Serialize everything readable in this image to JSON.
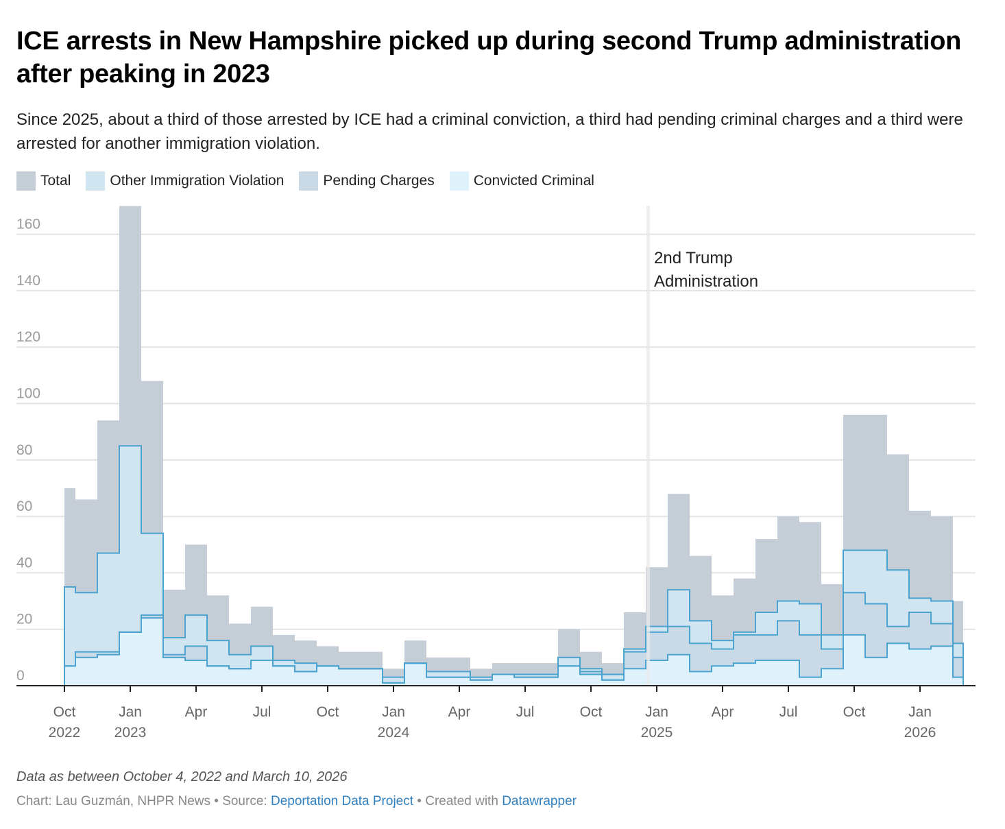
{
  "header": {
    "title": "ICE arrests in New Hampshire picked up during second Trump administration after peaking in 2023",
    "subtitle": "Since 2025, about a third of those arrested by ICE had a criminal conviction, a third had pending criminal charges and a third were arrested for another immigration violation."
  },
  "legend": [
    {
      "label": "Total",
      "color": "#c5cdd7"
    },
    {
      "label": "Other Immigration Violation",
      "color": "#d1e5f1"
    },
    {
      "label": "Pending Charges",
      "color": "#c9d9e6"
    },
    {
      "label": "Convicted Criminal",
      "color": "#dff1fb"
    }
  ],
  "footer": {
    "note": "Data as between October 4, 2022 and March 10, 2026",
    "chart_prefix": "Chart: Lau Guzmán, NHPR News • Source: ",
    "source_link": "Deportation Data Project",
    "created_prefix": " • Created with ",
    "created_link": "Datawrapper"
  },
  "colors": {
    "total": "#c5cdd7",
    "other": "#d1e5f1",
    "pending": "#c9d9e6",
    "convicted": "#dff1fb",
    "line": "#4ba3d0",
    "grid": "#e4e4e4",
    "axis_text": "#9a9a9a",
    "xaxis_text": "#666666"
  },
  "chart_data": {
    "type": "area",
    "subtype": "step",
    "title": "ICE arrests in New Hampshire picked up during second Trump administration after peaking in 2023",
    "xlabel": "",
    "ylabel": "",
    "ylim": [
      0,
      170
    ],
    "grid": true,
    "legend_position": "top-left",
    "y_ticks": [
      0,
      20,
      40,
      60,
      80,
      100,
      120,
      140,
      160
    ],
    "x_ticks": [
      {
        "label": "Oct",
        "sub": "2022",
        "month_index": 0
      },
      {
        "label": "Jan",
        "sub": "2023",
        "month_index": 3
      },
      {
        "label": "Apr",
        "sub": "",
        "month_index": 6
      },
      {
        "label": "Jul",
        "sub": "",
        "month_index": 9
      },
      {
        "label": "Oct",
        "sub": "",
        "month_index": 12
      },
      {
        "label": "Jan",
        "sub": "2024",
        "month_index": 15
      },
      {
        "label": "Apr",
        "sub": "",
        "month_index": 18
      },
      {
        "label": "Jul",
        "sub": "",
        "month_index": 21
      },
      {
        "label": "Oct",
        "sub": "",
        "month_index": 24
      },
      {
        "label": "Jan",
        "sub": "2025",
        "month_index": 27
      },
      {
        "label": "Apr",
        "sub": "",
        "month_index": 30
      },
      {
        "label": "Jul",
        "sub": "",
        "month_index": 33
      },
      {
        "label": "Oct",
        "sub": "",
        "month_index": 36
      },
      {
        "label": "Jan",
        "sub": "2026",
        "month_index": 39
      }
    ],
    "x": [
      "2022-10",
      "2022-11",
      "2022-12",
      "2023-01",
      "2023-02",
      "2023-03",
      "2023-04",
      "2023-05",
      "2023-06",
      "2023-07",
      "2023-08",
      "2023-09",
      "2023-10",
      "2023-11",
      "2023-12",
      "2024-01",
      "2024-02",
      "2024-03",
      "2024-04",
      "2024-05",
      "2024-06",
      "2024-07",
      "2024-08",
      "2024-09",
      "2024-10",
      "2024-11",
      "2024-12",
      "2025-01",
      "2025-02",
      "2025-03",
      "2025-04",
      "2025-05",
      "2025-06",
      "2025-07",
      "2025-08",
      "2025-09",
      "2025-10",
      "2025-11",
      "2025-12",
      "2026-01",
      "2026-02",
      "2026-03"
    ],
    "series": [
      {
        "name": "Total",
        "values": [
          70,
          66,
          94,
          170,
          108,
          34,
          50,
          32,
          22,
          28,
          18,
          16,
          14,
          12,
          12,
          6,
          16,
          10,
          10,
          6,
          8,
          8,
          8,
          20,
          12,
          8,
          26,
          42,
          68,
          46,
          32,
          38,
          52,
          60,
          58,
          36,
          96,
          96,
          82,
          62,
          60,
          30
        ]
      },
      {
        "name": "Other Immigration Violation",
        "values": [
          35,
          33,
          47,
          85,
          54,
          17,
          25,
          16,
          11,
          14,
          9,
          8,
          7,
          6,
          6,
          3,
          8,
          5,
          5,
          3,
          4,
          4,
          4,
          10,
          6,
          4,
          13,
          21,
          34,
          23,
          16,
          19,
          26,
          30,
          29,
          18,
          48,
          48,
          41,
          31,
          30,
          15
        ]
      },
      {
        "name": "Pending Charges",
        "values": [
          7,
          12,
          12,
          19,
          25,
          11,
          14,
          7,
          6,
          9,
          7,
          5,
          7,
          6,
          6,
          1,
          8,
          3,
          3,
          2,
          4,
          3,
          3,
          7,
          5,
          2,
          12,
          19,
          21,
          15,
          13,
          18,
          18,
          23,
          18,
          13,
          33,
          29,
          21,
          26,
          22,
          10
        ]
      },
      {
        "name": "Convicted Criminal",
        "values": [
          7,
          10,
          11,
          19,
          24,
          10,
          9,
          7,
          6,
          9,
          7,
          5,
          7,
          6,
          6,
          1,
          8,
          3,
          3,
          2,
          4,
          3,
          3,
          7,
          4,
          2,
          6,
          9,
          11,
          5,
          7,
          8,
          9,
          9,
          3,
          6,
          18,
          10,
          15,
          13,
          14,
          3
        ]
      }
    ],
    "annotations": [
      {
        "text": "2nd Trump Administration",
        "line1": "2nd Trump",
        "line2": "Administration",
        "x": "2025-01-20"
      }
    ]
  }
}
